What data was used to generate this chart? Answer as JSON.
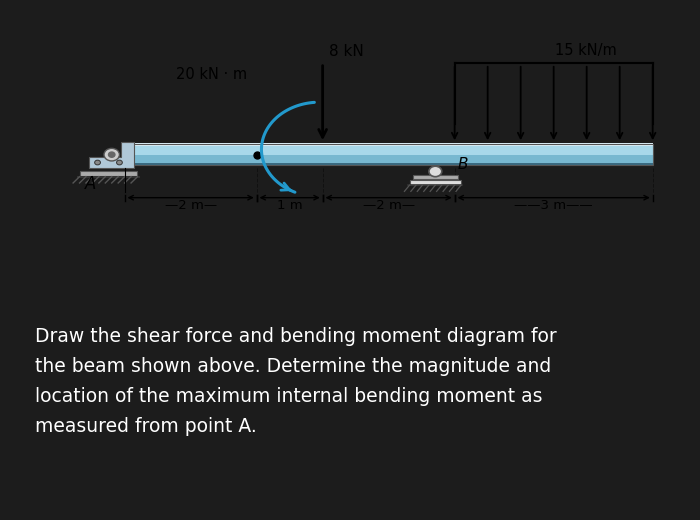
{
  "bg_outer": "#1c1c1c",
  "bg_inner": "#ffffff",
  "beam_color_top_highlight": "#e8f4fa",
  "beam_color_main": "#8fc8de",
  "beam_color_mid": "#6ab0cc",
  "beam_color_bot": "#4a8caa",
  "beam_color_dark": "#2a6080",
  "text_color_white": "#ffffff",
  "text_color_black": "#000000",
  "title_text": "Draw the shear force and bending moment diagram for\nthe beam shown above. Determine the magnitude and\nlocation of the maximum internal bending moment as\nmeasured from point A.",
  "label_8kN": "8 kN",
  "label_20kNm": "20 kN · m",
  "label_15kNm": "15 kN/m",
  "label_A": "A",
  "label_B": "B",
  "dim_2m_1": "——2 m——",
  "dim_1m": "±1 m±",
  "dim_2m_2": "——2 m——",
  "dim_3m": "———3 m——",
  "font_size_labels": 10,
  "font_size_text": 13.5
}
